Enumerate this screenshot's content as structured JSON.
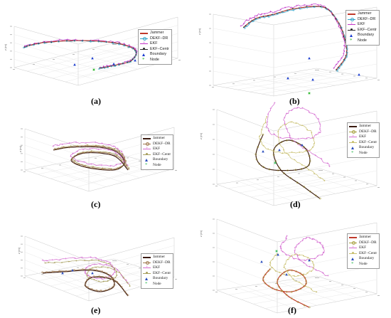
{
  "figure": {
    "panels": [
      {
        "caption": "(a)",
        "legend_style": "sans"
      },
      {
        "caption": "(b)",
        "legend_style": "sans"
      },
      {
        "caption": "(c)",
        "legend_style": "serif"
      },
      {
        "caption": "(d)",
        "legend_style": "serif"
      },
      {
        "caption": "(e)",
        "legend_style": "serif"
      },
      {
        "caption": "(f)",
        "legend_style": "serif"
      }
    ]
  },
  "chart_data": [
    {
      "type": "line3d",
      "panel": "a",
      "view": "oblique-left",
      "zlabel": "z (m)",
      "legend": [
        "Jammer",
        "DEKF−DR",
        "EKF",
        "EKF−Centr",
        "Boundary",
        "Node"
      ],
      "colors": {
        "Jammer": "#c0392b",
        "DEKF−DR": "#33a3c9",
        "EKF": "#c234c8",
        "EKF−Centr": "#2b2b2b",
        "Boundary": "#1a3ccf",
        "Node": "#2fb82f"
      }
    },
    {
      "type": "line3d",
      "panel": "b",
      "view": "top",
      "zlabel": "z (m)",
      "legend": [
        "Jammer",
        "DEKF−DR",
        "EKF",
        "EKF−Centr",
        "Boundary",
        "Node"
      ],
      "colors": {
        "Jammer": "#c0392b",
        "DEKF−DR": "#33a3c9",
        "EKF": "#c234c8",
        "EKF−Centr": "#2b2b2b",
        "Boundary": "#1a3ccf",
        "Node": "#2fb82f"
      }
    },
    {
      "type": "line3d",
      "panel": "c",
      "view": "oblique-left",
      "zlabel": "z (m)",
      "legend": [
        "Jammer",
        "DEKF−DR",
        "EKF",
        "EKF−Centr",
        "Boundary",
        "Node"
      ],
      "colors": {
        "Jammer": "#3a1a10",
        "DEKF−DR": "#a07a50",
        "EKF": "#d46ad0",
        "EKF−Centr": "#a8a060",
        "Boundary": "#2a4dbd",
        "Node": "#3fbf5f"
      }
    },
    {
      "type": "line3d",
      "panel": "d",
      "view": "top",
      "zlabel": "z (m)",
      "legend": [
        "Jammer",
        "DEKF−DR",
        "EKF",
        "EKF−Centr",
        "Boundary",
        "Node"
      ],
      "colors": {
        "Jammer": "#3a1a10",
        "DEKF−DR": "#a8a040",
        "EKF": "#d46ad0",
        "EKF−Centr": "#c9c070",
        "Boundary": "#2a4dbd",
        "Node": "#3fbf5f"
      }
    },
    {
      "type": "line3d",
      "panel": "e",
      "view": "oblique-left",
      "zlabel": "z (m)",
      "legend": [
        "Jammer",
        "DEKF−DR",
        "EKF",
        "EKF−Centr",
        "Boundary",
        "Node"
      ],
      "colors": {
        "Jammer": "#3a1a10",
        "DEKF−DR": "#a07a50",
        "EKF": "#d46ad0",
        "EKF−Centr": "#a8a060",
        "Boundary": "#2a4dbd",
        "Node": "#3fbf5f"
      }
    },
    {
      "type": "line3d",
      "panel": "f",
      "view": "top",
      "zlabel": "z (m)",
      "legend": [
        "Jammer",
        "DEKF−DR",
        "EKF",
        "EKF−Centr",
        "Boundary",
        "Node"
      ],
      "colors": {
        "Jammer": "#c0392b",
        "DEKF−DR": "#a8a040",
        "EKF": "#d46ad0",
        "EKF−Centr": "#c9c070",
        "Boundary": "#2a4dbd",
        "Node": "#3fbf5f"
      }
    }
  ]
}
